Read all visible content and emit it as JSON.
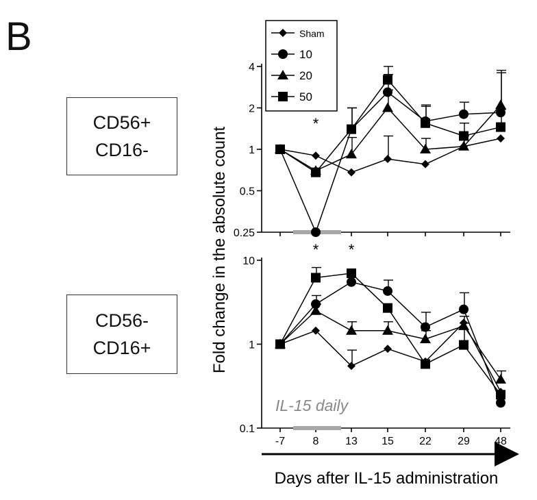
{
  "figure": {
    "panel_letter": "B",
    "y_axis_label": "Fold change in the absolute count",
    "x_axis_label": "Days after IL-15 administration",
    "treatment_annotation": "IL-15 daily",
    "significance_marker": "*"
  },
  "populations": [
    {
      "line1": "CD56+",
      "line2": "CD16-"
    },
    {
      "line1": "CD56-",
      "line2": "CD16+"
    }
  ],
  "legend": {
    "placement": "top-left",
    "entries": [
      {
        "label": "Sham",
        "marker": "diamond"
      },
      {
        "label": "10",
        "marker": "circle"
      },
      {
        "label": "20",
        "marker": "triangle"
      },
      {
        "label": "50",
        "marker": "square"
      }
    ]
  },
  "chart_data": [
    {
      "type": "line",
      "scale": "log",
      "population": "CD56+ CD16-",
      "categories": [
        "-7",
        "8",
        "13",
        "15",
        "22",
        "29",
        "48"
      ],
      "ylim": [
        0.25,
        4
      ],
      "yticks": [
        0.25,
        0.5,
        1,
        2,
        4
      ],
      "ytick_labels": [
        "0.25",
        "0.5",
        "1",
        "2",
        "4"
      ],
      "significance_at": [
        "8"
      ],
      "series": [
        {
          "name": "Sham",
          "marker": "diamond",
          "values": [
            1,
            0.9,
            0.68,
            0.85,
            0.78,
            1.05,
            1.2
          ],
          "error": [
            0,
            0,
            0,
            0.4,
            0,
            0,
            0
          ]
        },
        {
          "name": "10",
          "marker": "circle",
          "values": [
            1,
            0.25,
            1.4,
            2.6,
            1.6,
            1.8,
            1.85
          ],
          "error": [
            0,
            0,
            0.6,
            0.9,
            0.5,
            0.4,
            1.9
          ]
        },
        {
          "name": "20",
          "marker": "triangle",
          "values": [
            1,
            0.7,
            0.92,
            2.0,
            1.0,
            1.05,
            2.1
          ],
          "error": [
            0,
            0,
            0.3,
            0.7,
            0.2,
            0.2,
            1.5
          ]
        },
        {
          "name": "50",
          "marker": "square",
          "values": [
            1,
            0.68,
            1.4,
            3.2,
            1.55,
            1.25,
            1.45
          ],
          "error": [
            0,
            0,
            0.6,
            0.8,
            0.5,
            0.3,
            0.5
          ]
        }
      ]
    },
    {
      "type": "line",
      "scale": "log",
      "population": "CD56- CD16+",
      "categories": [
        "-7",
        "8",
        "13",
        "15",
        "22",
        "29",
        "48"
      ],
      "ylim": [
        0.1,
        10
      ],
      "yticks": [
        0.1,
        1,
        10
      ],
      "ytick_labels": [
        "0.1",
        "1",
        "10"
      ],
      "significance_at": [
        "8",
        "13"
      ],
      "series": [
        {
          "name": "Sham",
          "marker": "diamond",
          "values": [
            1,
            1.45,
            0.55,
            0.88,
            0.62,
            1.8,
            0.27
          ],
          "error": [
            0,
            0,
            0.3,
            0,
            0,
            0,
            0
          ]
        },
        {
          "name": "10",
          "marker": "circle",
          "values": [
            1,
            3.0,
            5.5,
            4.3,
            1.6,
            2.6,
            0.2
          ],
          "error": [
            0,
            0.8,
            0,
            1.5,
            0.8,
            1.5,
            0
          ]
        },
        {
          "name": "20",
          "marker": "triangle",
          "values": [
            1,
            2.5,
            1.45,
            1.45,
            1.15,
            1.65,
            0.38
          ],
          "error": [
            0,
            0.5,
            0.4,
            0.4,
            0.3,
            0.5,
            0.1
          ]
        },
        {
          "name": "50",
          "marker": "square",
          "values": [
            1,
            6.2,
            7.0,
            2.7,
            0.58,
            0.98,
            0.25
          ],
          "error": [
            0,
            2.0,
            0,
            0,
            0,
            0.8,
            0
          ]
        }
      ]
    }
  ]
}
